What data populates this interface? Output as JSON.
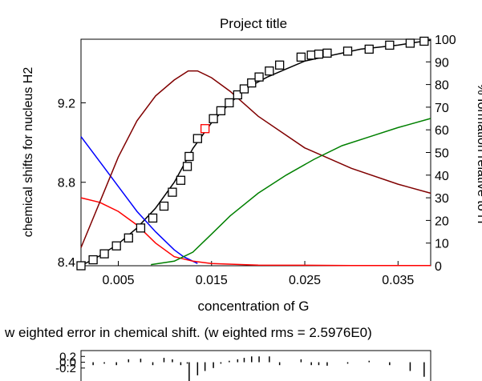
{
  "chart_data": [
    {
      "type": "line",
      "title": "Project title",
      "xlabel": "concentration of G",
      "ylabel": "chemical shifts for nucleus H2",
      "y2label": "% formation relative to H",
      "xlim": [
        0.001,
        0.0385
      ],
      "ylim": [
        8.38,
        9.52
      ],
      "y2lim": [
        0,
        100
      ],
      "x_ticks": [
        0.005,
        0.015,
        0.025,
        0.035
      ],
      "x_tick_labels": [
        "0.005",
        "0.015",
        "0.025",
        "0.035"
      ],
      "y_ticks": [
        8.4,
        8.8,
        9.2
      ],
      "y_tick_labels": [
        "8.4",
        "8.8",
        "9.2"
      ],
      "y2_ticks": [
        0,
        10,
        20,
        30,
        40,
        50,
        60,
        70,
        80,
        90,
        100
      ],
      "y2_tick_labels": [
        "0",
        "10",
        "20",
        "30",
        "40",
        "50",
        "60",
        "70",
        "80",
        "90",
        "100"
      ],
      "grid": false,
      "series": [
        {
          "role": "observed",
          "marker": "square",
          "color": "#000000",
          "outlier_color": "#ff0000",
          "outlier_index": 13,
          "x": [
            0.001,
            0.0023,
            0.0035,
            0.0048,
            0.0061,
            0.0074,
            0.0087,
            0.0099,
            0.0108,
            0.0117,
            0.0124,
            0.0126,
            0.0135,
            0.0143,
            0.0152,
            0.016,
            0.0169,
            0.0178,
            0.0185,
            0.0193,
            0.0201,
            0.0212,
            0.0223,
            0.0246,
            0.0257,
            0.0265,
            0.0274,
            0.0296,
            0.0319,
            0.0341,
            0.0363,
            0.0378
          ],
          "y": [
            8.38,
            8.41,
            8.44,
            8.48,
            8.52,
            8.57,
            8.62,
            8.68,
            8.75,
            8.81,
            8.88,
            8.93,
            9.02,
            9.07,
            9.12,
            9.16,
            9.2,
            9.24,
            9.27,
            9.3,
            9.33,
            9.36,
            9.39,
            9.43,
            9.44,
            9.445,
            9.45,
            9.46,
            9.47,
            9.49,
            9.5,
            9.51
          ]
        },
        {
          "role": "calculated shift",
          "color": "#000000",
          "x": [
            0.001,
            0.003,
            0.005,
            0.007,
            0.009,
            0.011,
            0.013,
            0.015,
            0.017,
            0.019,
            0.021,
            0.023,
            0.025,
            0.027,
            0.029,
            0.031,
            0.033,
            0.035,
            0.037,
            0.0385
          ],
          "y": [
            8.38,
            8.43,
            8.49,
            8.57,
            8.67,
            8.8,
            8.97,
            9.1,
            9.2,
            9.28,
            9.33,
            9.37,
            9.41,
            9.43,
            9.45,
            9.47,
            9.48,
            9.49,
            9.505,
            9.515
          ]
        },
        {
          "role": "species %",
          "axis": "right",
          "color": "#0000ff",
          "x": [
            0.001,
            0.003,
            0.005,
            0.007,
            0.009,
            0.011,
            0.012,
            0.0135
          ],
          "y": [
            57,
            46,
            35,
            24,
            15,
            7,
            4,
            1
          ]
        },
        {
          "role": "species %",
          "axis": "right",
          "color": "#ff0000",
          "x": [
            0.001,
            0.003,
            0.005,
            0.007,
            0.009,
            0.011,
            0.013,
            0.015,
            0.02,
            0.025,
            0.03,
            0.035,
            0.0385
          ],
          "y": [
            30,
            28,
            24,
            18,
            10,
            4,
            2,
            1,
            0.3,
            0.2,
            0.1,
            0.1,
            0.1
          ]
        },
        {
          "role": "species %",
          "axis": "right",
          "color": "#800000",
          "x": [
            0.001,
            0.003,
            0.005,
            0.007,
            0.009,
            0.011,
            0.0125,
            0.0135,
            0.015,
            0.017,
            0.02,
            0.025,
            0.03,
            0.035,
            0.0385
          ],
          "y": [
            8,
            28,
            48,
            64,
            75,
            82,
            86,
            86,
            83,
            77,
            66,
            52,
            43,
            36,
            32
          ]
        },
        {
          "role": "species %",
          "axis": "right",
          "color": "#008000",
          "x": [
            0.0085,
            0.011,
            0.013,
            0.015,
            0.017,
            0.02,
            0.023,
            0.026,
            0.029,
            0.032,
            0.035,
            0.0385
          ],
          "y": [
            0.5,
            2,
            6,
            14,
            22,
            32,
            40,
            47,
            53,
            57,
            61,
            65
          ]
        }
      ]
    },
    {
      "type": "bar",
      "title": "w eighted error in chemical shift. (w eighted rms = 2.5976E0)",
      "ylim": [
        -0.7,
        0.4
      ],
      "y_ticks": [
        0.2,
        0.0,
        -0.2
      ],
      "y_tick_labels": [
        "0.2",
        "0.0",
        "-0.2"
      ],
      "bar_color": "#000000",
      "x": [
        0.0023,
        0.0035,
        0.0048,
        0.0061,
        0.0074,
        0.0087,
        0.0099,
        0.0108,
        0.0117,
        0.0124,
        0.0126,
        0.0135,
        0.0143,
        0.0152,
        0.016,
        0.0169,
        0.0178,
        0.0185,
        0.0193,
        0.0201,
        0.0212,
        0.0223,
        0.0246,
        0.0257,
        0.0265,
        0.0274,
        0.0296,
        0.0319,
        0.0341,
        0.0363,
        0.0378
      ],
      "values": [
        -0.1,
        -0.05,
        -0.1,
        0.1,
        0.12,
        -0.1,
        0.15,
        0.1,
        -0.1,
        -0.05,
        -0.7,
        -0.45,
        -0.3,
        -0.2,
        -0.05,
        0.05,
        0.1,
        0.15,
        0.2,
        0.2,
        0.2,
        -0.1,
        0.1,
        -0.1,
        -0.1,
        -0.12,
        -0.05,
        0.05,
        -0.1,
        -0.3,
        -0.5
      ]
    }
  ]
}
